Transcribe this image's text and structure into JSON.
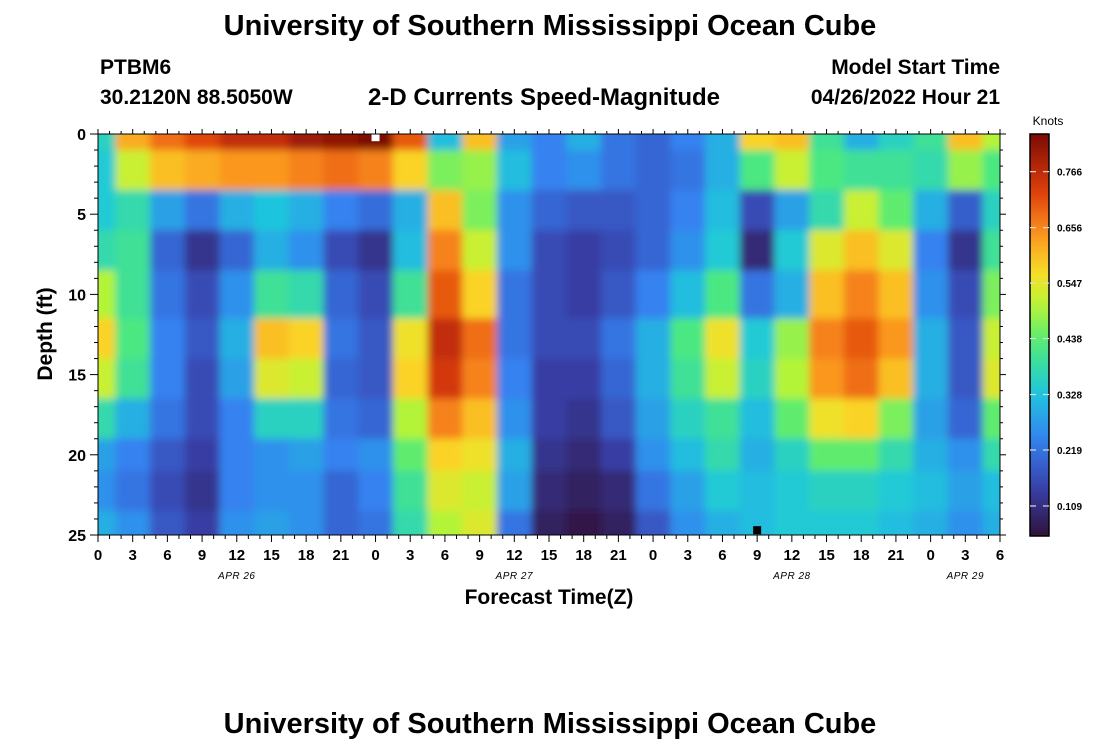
{
  "header": {
    "title": "University of Southern Mississippi Ocean Cube",
    "station_id": "PTBM6",
    "coordinates": "30.2120N  88.5050W",
    "chart_title": "2-D Currents Speed-Magnitude",
    "model_start_label": "Model Start Time",
    "model_start_value": "04/26/2022 Hour 21"
  },
  "footer": {
    "title": "University of Southern Mississippi Ocean Cube"
  },
  "chart_data": {
    "type": "heatmap",
    "title": "2-D Currents Speed-Magnitude",
    "xlabel": "Forecast Time(Z)",
    "ylabel": "Depth (ft)",
    "colorbar_label": "Knots",
    "x_hours_from_apr26_00z": [
      0,
      3,
      6,
      9,
      12,
      15,
      18,
      21,
      24,
      27,
      30,
      33,
      36,
      39,
      42,
      45,
      48,
      51,
      54,
      57,
      60,
      63,
      66,
      69,
      72,
      75,
      78
    ],
    "x_tick_labels": [
      "0",
      "3",
      "6",
      "9",
      "12",
      "15",
      "18",
      "21",
      "0",
      "3",
      "6",
      "9",
      "12",
      "15",
      "18",
      "21",
      "0",
      "3",
      "6",
      "9",
      "12",
      "15",
      "18",
      "21",
      "0",
      "3",
      "6"
    ],
    "date_labels": [
      {
        "label": "APR 26",
        "hour": 12
      },
      {
        "label": "APR 27",
        "hour": 36
      },
      {
        "label": "APR 28",
        "hour": 60
      },
      {
        "label": "APR 29",
        "hour": 75
      }
    ],
    "y_ticks": [
      0,
      5,
      10,
      15,
      20,
      25
    ],
    "ylim": [
      25,
      0
    ],
    "colorbar_ticks": [
      0.109,
      0.219,
      0.328,
      0.438,
      0.547,
      0.656,
      0.766
    ],
    "colorbar_range": [
      0.05,
      0.84
    ],
    "depths_ft": [
      0,
      2,
      5,
      7,
      10,
      13,
      15,
      18,
      20,
      22,
      25
    ],
    "values_knots": [
      [
        0.36,
        0.62,
        0.68,
        0.72,
        0.76,
        0.76,
        0.8,
        0.82,
        0.86,
        0.7,
        0.32,
        0.6,
        0.28,
        0.24,
        0.3,
        0.22,
        0.2,
        0.24,
        0.3,
        0.58,
        0.6,
        0.4,
        0.3,
        0.36,
        0.4,
        0.6,
        0.5
      ],
      [
        0.34,
        0.52,
        0.6,
        0.62,
        0.64,
        0.64,
        0.66,
        0.68,
        0.66,
        0.58,
        0.46,
        0.48,
        0.32,
        0.24,
        0.26,
        0.22,
        0.2,
        0.22,
        0.3,
        0.42,
        0.52,
        0.42,
        0.4,
        0.4,
        0.38,
        0.48,
        0.42
      ],
      [
        0.34,
        0.38,
        0.28,
        0.22,
        0.3,
        0.33,
        0.3,
        0.24,
        0.21,
        0.3,
        0.6,
        0.46,
        0.26,
        0.2,
        0.18,
        0.18,
        0.2,
        0.24,
        0.32,
        0.16,
        0.28,
        0.38,
        0.52,
        0.44,
        0.3,
        0.19,
        0.36
      ],
      [
        0.38,
        0.4,
        0.2,
        0.12,
        0.2,
        0.3,
        0.26,
        0.16,
        0.12,
        0.32,
        0.66,
        0.52,
        0.26,
        0.16,
        0.14,
        0.16,
        0.2,
        0.26,
        0.34,
        0.1,
        0.34,
        0.54,
        0.6,
        0.54,
        0.24,
        0.12,
        0.4
      ],
      [
        0.5,
        0.4,
        0.22,
        0.16,
        0.26,
        0.4,
        0.38,
        0.2,
        0.16,
        0.4,
        0.7,
        0.58,
        0.22,
        0.16,
        0.14,
        0.18,
        0.24,
        0.32,
        0.42,
        0.22,
        0.3,
        0.6,
        0.66,
        0.6,
        0.26,
        0.16,
        0.46
      ],
      [
        0.58,
        0.42,
        0.24,
        0.18,
        0.3,
        0.6,
        0.58,
        0.22,
        0.18,
        0.56,
        0.76,
        0.68,
        0.22,
        0.16,
        0.16,
        0.22,
        0.3,
        0.42,
        0.56,
        0.34,
        0.48,
        0.66,
        0.7,
        0.64,
        0.3,
        0.18,
        0.52
      ],
      [
        0.52,
        0.4,
        0.24,
        0.16,
        0.28,
        0.54,
        0.52,
        0.2,
        0.18,
        0.58,
        0.74,
        0.66,
        0.24,
        0.14,
        0.14,
        0.2,
        0.3,
        0.4,
        0.52,
        0.36,
        0.5,
        0.64,
        0.68,
        0.6,
        0.3,
        0.18,
        0.54
      ],
      [
        0.38,
        0.3,
        0.22,
        0.16,
        0.24,
        0.36,
        0.36,
        0.22,
        0.2,
        0.5,
        0.66,
        0.6,
        0.26,
        0.14,
        0.12,
        0.18,
        0.28,
        0.36,
        0.4,
        0.32,
        0.44,
        0.56,
        0.58,
        0.46,
        0.28,
        0.2,
        0.44
      ],
      [
        0.28,
        0.24,
        0.18,
        0.14,
        0.24,
        0.26,
        0.28,
        0.24,
        0.26,
        0.44,
        0.58,
        0.56,
        0.3,
        0.12,
        0.1,
        0.14,
        0.26,
        0.32,
        0.38,
        0.3,
        0.36,
        0.44,
        0.44,
        0.38,
        0.3,
        0.26,
        0.38
      ],
      [
        0.26,
        0.22,
        0.16,
        0.12,
        0.24,
        0.26,
        0.26,
        0.2,
        0.24,
        0.4,
        0.54,
        0.52,
        0.28,
        0.1,
        0.08,
        0.1,
        0.22,
        0.28,
        0.34,
        0.32,
        0.34,
        0.36,
        0.36,
        0.34,
        0.32,
        0.28,
        0.32
      ],
      [
        0.3,
        0.26,
        0.18,
        0.14,
        0.26,
        0.28,
        0.26,
        0.2,
        0.22,
        0.38,
        0.5,
        0.54,
        0.22,
        0.08,
        0.06,
        0.08,
        0.18,
        0.26,
        0.3,
        0.32,
        0.34,
        0.34,
        0.34,
        0.32,
        0.3,
        0.26,
        0.3
      ]
    ],
    "markers": [
      {
        "x_hour": 24,
        "depth": 0.2,
        "color": "#ffffff"
      },
      {
        "x_hour": 57,
        "depth": 24.7,
        "color": "#000000"
      }
    ]
  }
}
